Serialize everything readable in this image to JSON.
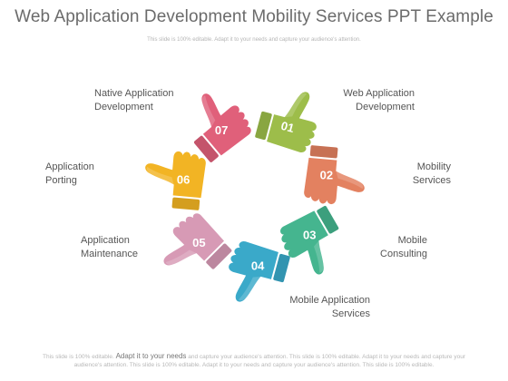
{
  "title": "Web Application Development Mobility Services PPT Example",
  "subtitle": "This slide is 100% editable. Adapt it to your needs and capture your audience's attention.",
  "items": [
    {
      "num": "01",
      "label_line1": "Web Application",
      "label_line2": "Development",
      "color": "#9dbd4a"
    },
    {
      "num": "02",
      "label_line1": "Mobility",
      "label_line2": "Services",
      "color": "#e38160"
    },
    {
      "num": "03",
      "label_line1": "Mobile",
      "label_line2": "Consulting",
      "color": "#45b58f"
    },
    {
      "num": "04",
      "label_line1": "Mobile Application",
      "label_line2": "Services",
      "color": "#3aa9c9"
    },
    {
      "num": "05",
      "label_line1": "Application",
      "label_line2": "Maintenance",
      "color": "#d79ab5"
    },
    {
      "num": "06",
      "label_line1": "Application",
      "label_line2": "Porting",
      "color": "#f2b424"
    },
    {
      "num": "07",
      "label_line1": "Native Application",
      "label_line2": "Development",
      "color": "#e0607a"
    }
  ],
  "footer": {
    "pre": "This slide is 100% editable.",
    "em": "Adapt it to your  needs",
    "post": "and capture your audience's attention. This slide is 100% editable. Adapt it to your needs and capture your audience's attention. This slide is 100% editable. Adapt it to your needs and capture your audience's attention. This slide is 100% editable."
  }
}
